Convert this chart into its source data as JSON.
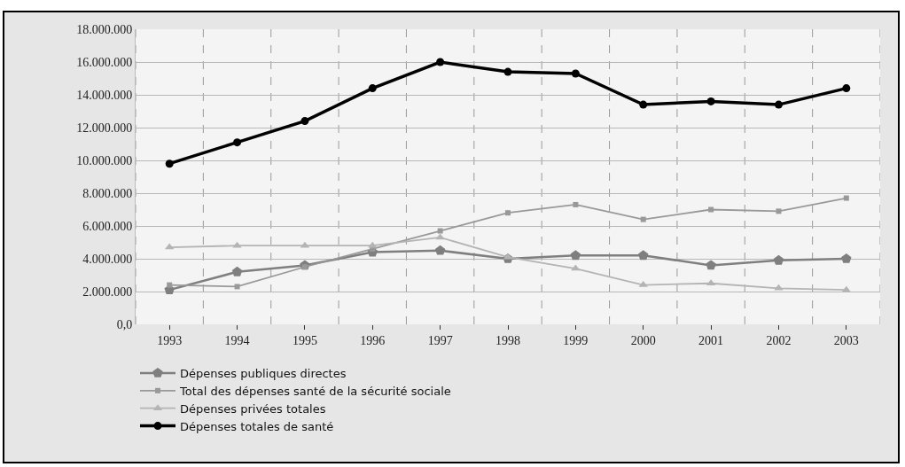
{
  "chart_data": {
    "type": "line",
    "categories": [
      "1993",
      "1994",
      "1995",
      "1996",
      "1997",
      "1998",
      "1999",
      "2000",
      "2001",
      "2002",
      "2003"
    ],
    "series": [
      {
        "name": "Dépenses publiques directes",
        "color": "#7f7f7f",
        "marker": "diamond",
        "values": [
          2100000,
          3200000,
          3600000,
          4400000,
          4500000,
          4000000,
          4200000,
          4200000,
          3600000,
          3900000,
          4000000
        ]
      },
      {
        "name": "Total des dépenses santé de la sécurité sociale",
        "color": "#999999",
        "marker": "square",
        "values": [
          2400000,
          2300000,
          3500000,
          4600000,
          5700000,
          6800000,
          7300000,
          6400000,
          7000000,
          6900000,
          7700000
        ]
      },
      {
        "name": "Dépenses privées totales",
        "color": "#b4b4b4",
        "marker": "triangle",
        "values": [
          4700000,
          4800000,
          4800000,
          4800000,
          5300000,
          4100000,
          3400000,
          2400000,
          2500000,
          2200000,
          2100000
        ]
      },
      {
        "name": "Dépenses totales de santé",
        "color": "#000000",
        "marker": "circle",
        "values": [
          9800000,
          11100000,
          12400000,
          14400000,
          16000000,
          15400000,
          15300000,
          13400000,
          13600000,
          13400000,
          14400000
        ]
      }
    ],
    "ylim": [
      0,
      18000000
    ],
    "yticks": [
      {
        "value": 0,
        "label": "0,0"
      },
      {
        "value": 2000000,
        "label": "2.000.000"
      },
      {
        "value": 4000000,
        "label": "4.000.000"
      },
      {
        "value": 6000000,
        "label": "6.000.000"
      },
      {
        "value": 8000000,
        "label": "8.000.000"
      },
      {
        "value": 10000000,
        "label": "10.000.000"
      },
      {
        "value": 12000000,
        "label": "12.000.000"
      },
      {
        "value": 14000000,
        "label": "14.000.000"
      },
      {
        "value": 16000000,
        "label": "16.000.000"
      },
      {
        "value": 18000000,
        "label": "18.000.000"
      }
    ],
    "grid": true,
    "legend": "bottom left",
    "line_style": "solid"
  }
}
